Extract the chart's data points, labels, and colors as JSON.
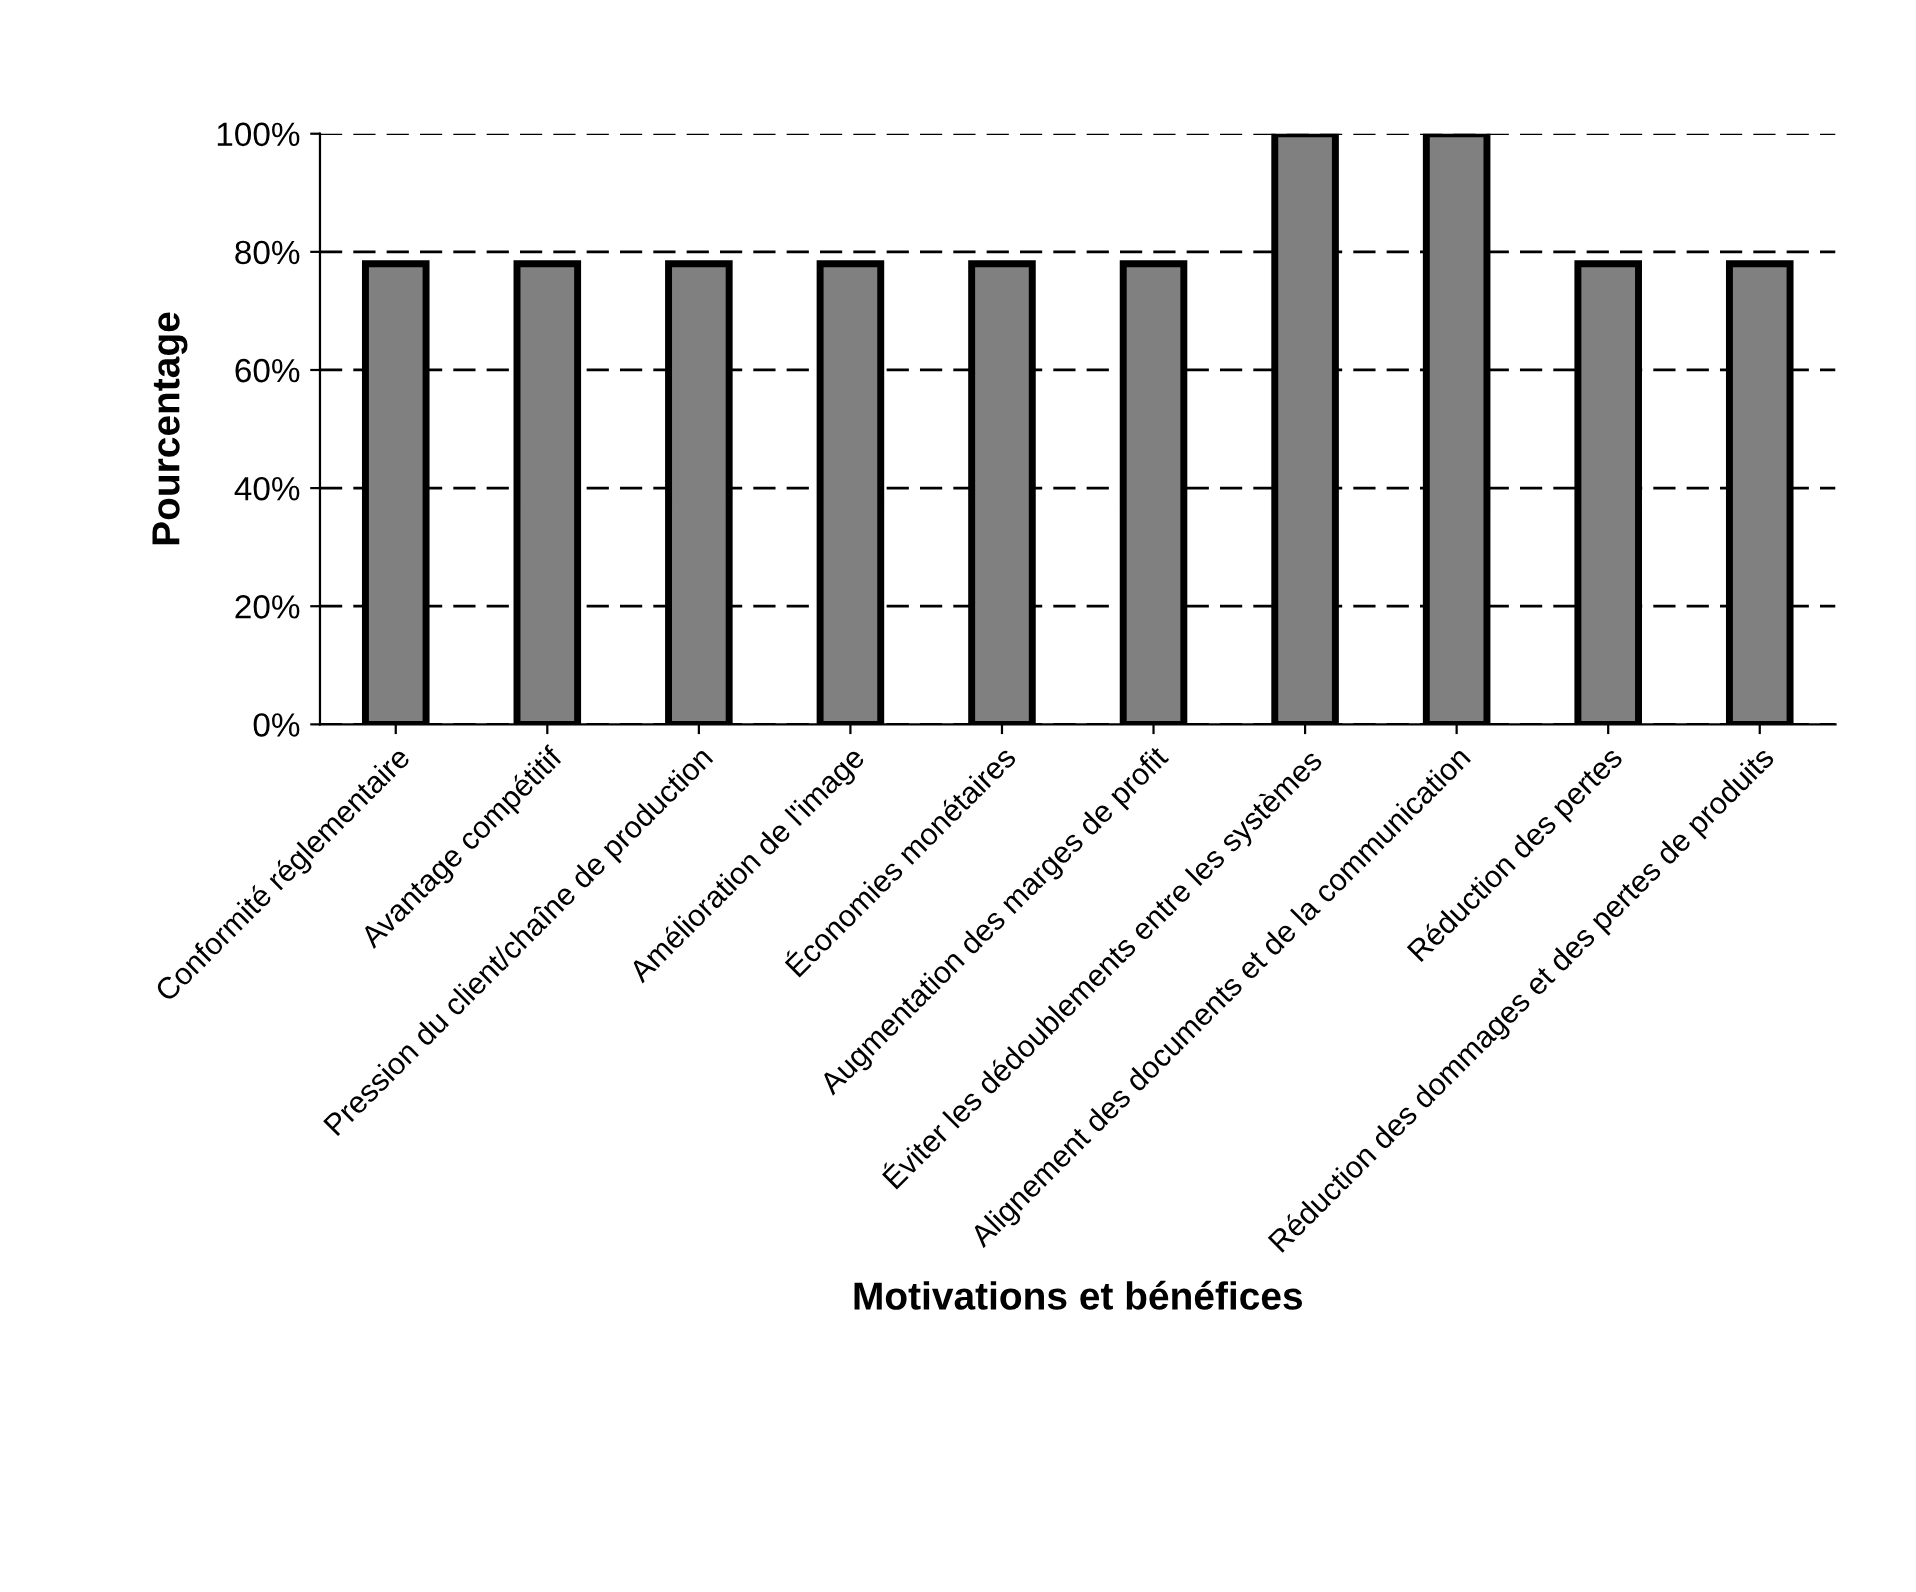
{
  "chart_data": {
    "type": "bar",
    "xlabel": "Motivations et bénéfices",
    "ylabel": "Pourcentage",
    "categories": [
      "Conformité réglementaire",
      "Avantage compétitif",
      "Pression du client/chaîne de production",
      "Amélioration de l'image",
      "Économies monétaires",
      "Augmentation des marges de profit",
      "Éviter les dédoublements entre les systèmes",
      "Alignement des documents et de la communication",
      "Réduction des pertes",
      "Réduction des dommages et des pertes de produits"
    ],
    "values": [
      78,
      78,
      78,
      78,
      78,
      78,
      100,
      100,
      78,
      78
    ],
    "color": "#808080",
    "ylim": [
      0,
      100
    ],
    "yticks": [
      {
        "value": 0,
        "label": "0%"
      },
      {
        "value": 20,
        "label": "20%"
      },
      {
        "value": 40,
        "label": "40%"
      },
      {
        "value": 60,
        "label": "60%"
      },
      {
        "value": 80,
        "label": "80%"
      },
      {
        "value": 100,
        "label": "100%"
      }
    ],
    "grid": "y",
    "line_style": "dashed"
  }
}
